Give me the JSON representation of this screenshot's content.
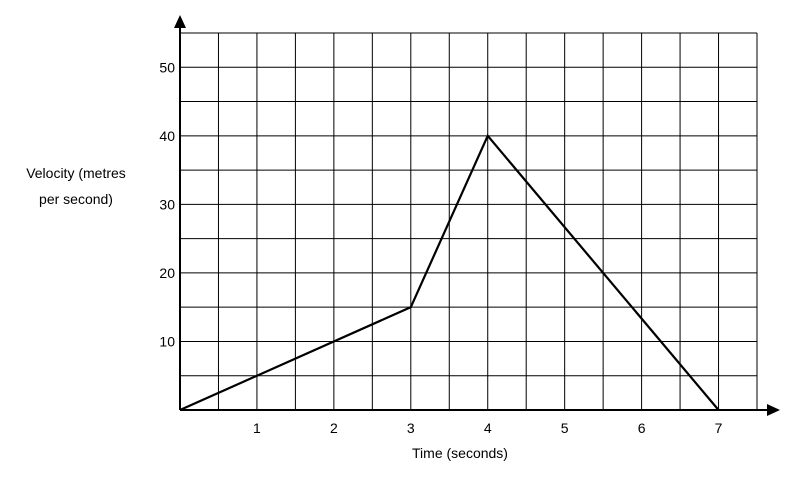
{
  "chart_data": {
    "type": "line",
    "xlabel": "Time (seconds)",
    "ylabel_lines": [
      "Velocity (metres",
      "per second)"
    ],
    "x_ticks": [
      1,
      2,
      3,
      4,
      5,
      6,
      7
    ],
    "y_ticks": [
      10,
      20,
      30,
      40,
      50
    ],
    "xlim": [
      0,
      7.5
    ],
    "ylim": [
      0,
      55
    ],
    "grid": true,
    "grid_x_step": 0.5,
    "grid_y_step": 5,
    "series": [
      {
        "x": [
          0,
          3,
          4,
          7
        ],
        "y": [
          0,
          15,
          40,
          0
        ]
      }
    ]
  }
}
